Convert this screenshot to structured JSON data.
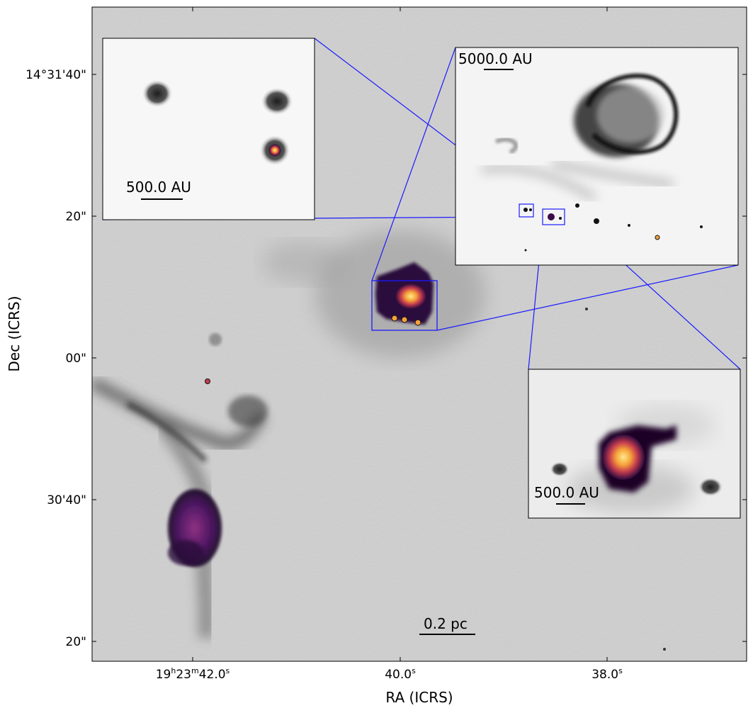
{
  "axes": {
    "xlabel": "RA (ICRS)",
    "ylabel": "Dec (ICRS)",
    "x_ticks": [
      {
        "h": "19",
        "m": "23",
        "s": "42.0",
        "sup_h": "h",
        "sup_m": "m",
        "sup_s": "s"
      },
      {
        "s": "40.0",
        "sup_s": "s"
      },
      {
        "s": "38.0",
        "sup_s": "s"
      }
    ],
    "y_ticks": [
      "14°31'40\"",
      "20\"",
      "00\"",
      "30'40\"",
      "20\""
    ]
  },
  "scalebars": {
    "main": "0.2 pc",
    "inset_large": "5000.0 AU",
    "inset_top_left": "500.0 AU",
    "inset_bottom_right": "500.0 AU"
  },
  "colors": {
    "connector": "#1a1aff",
    "background_map": "#c8c8c8",
    "colormap_low": "#2b0a3d",
    "colormap_mid": "#c43c4e",
    "colormap_high": "#fde98c"
  }
}
